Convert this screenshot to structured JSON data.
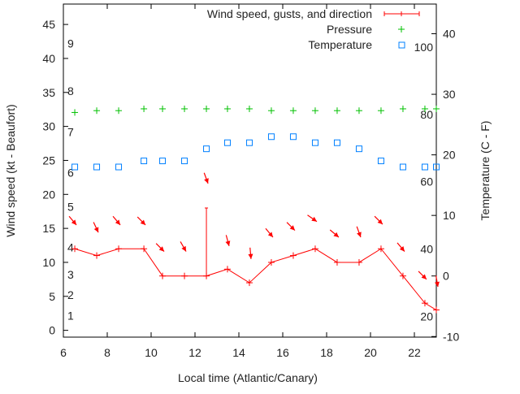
{
  "chart_data": {
    "type": "line",
    "xlabel": "Local time (Atlantic/Canary)",
    "ylabel": "Wind speed (kt - Beaufort)",
    "y2label": "Temperature (C - F)",
    "xlim": [
      6,
      23
    ],
    "ylim": [
      -1,
      48
    ],
    "y2lim": [
      -10.1,
      44.9
    ],
    "xticks": [
      6,
      8,
      10,
      12,
      14,
      16,
      18,
      20,
      22
    ],
    "yticks": [
      0,
      5,
      10,
      15,
      20,
      25,
      30,
      35,
      40,
      45
    ],
    "y2ticks": [
      -10,
      0,
      10,
      20,
      30,
      40
    ],
    "grid": false,
    "legend_position": "top-right",
    "beaufort_labels": [
      {
        "label": "1",
        "kt": 1
      },
      {
        "label": "2",
        "kt": 4
      },
      {
        "label": "3",
        "kt": 7
      },
      {
        "label": "4",
        "kt": 11
      },
      {
        "label": "5",
        "kt": 17
      },
      {
        "label": "6",
        "kt": 22
      },
      {
        "label": "7",
        "kt": 28
      },
      {
        "label": "8",
        "kt": 34
      },
      {
        "label": "9",
        "kt": 41
      }
    ],
    "fahrenheit_labels": [
      {
        "label": "20",
        "f": 20
      },
      {
        "label": "40",
        "f": 40
      },
      {
        "label": "60",
        "f": 60
      },
      {
        "label": "80",
        "f": 80
      },
      {
        "label": "100",
        "f": 100
      }
    ],
    "x": [
      6.52,
      7.52,
      8.52,
      9.67,
      10.52,
      11.52,
      12.52,
      13.48,
      14.48,
      15.48,
      16.48,
      17.48,
      18.48,
      19.48,
      20.48,
      21.48,
      22.48,
      23.0
    ],
    "series": [
      {
        "name": "Wind speed, gusts, and direction",
        "color": "#ff0000",
        "values": [
          12,
          11,
          12,
          12,
          8,
          8,
          8,
          9,
          7,
          10,
          11,
          12,
          10,
          10,
          12,
          8,
          4,
          3
        ],
        "gusts": [
          null,
          null,
          null,
          null,
          null,
          null,
          18,
          null,
          null,
          null,
          null,
          null,
          null,
          null,
          null,
          null,
          null,
          null
        ],
        "arrow_kt": [
          15.5,
          14.4,
          15.5,
          15.5,
          11.6,
          11.6,
          21.6,
          12.4,
          10.5,
          13.7,
          14.7,
          16,
          13.7,
          13.7,
          15.6,
          11.6,
          7.5,
          6.4
        ],
        "direction_deg": [
          320,
          335,
          320,
          315,
          315,
          330,
          340,
          345,
          355,
          320,
          315,
          305,
          310,
          340,
          315,
          320,
          315,
          350
        ]
      },
      {
        "name": "Pressure",
        "color": "#00c000",
        "axis": "y2",
        "values": [
          27.0,
          27.3,
          27.3,
          27.6,
          27.6,
          27.6,
          27.6,
          27.6,
          27.6,
          27.3,
          27.3,
          27.3,
          27.3,
          27.3,
          27.3,
          27.6,
          27.6,
          27.6
        ]
      },
      {
        "name": "Temperature",
        "color": "#0080ff",
        "axis": "y2",
        "values": [
          18,
          18,
          18,
          19,
          19,
          19,
          21,
          22,
          22,
          23,
          23,
          22,
          22,
          21,
          19,
          18,
          18,
          18
        ]
      }
    ]
  }
}
